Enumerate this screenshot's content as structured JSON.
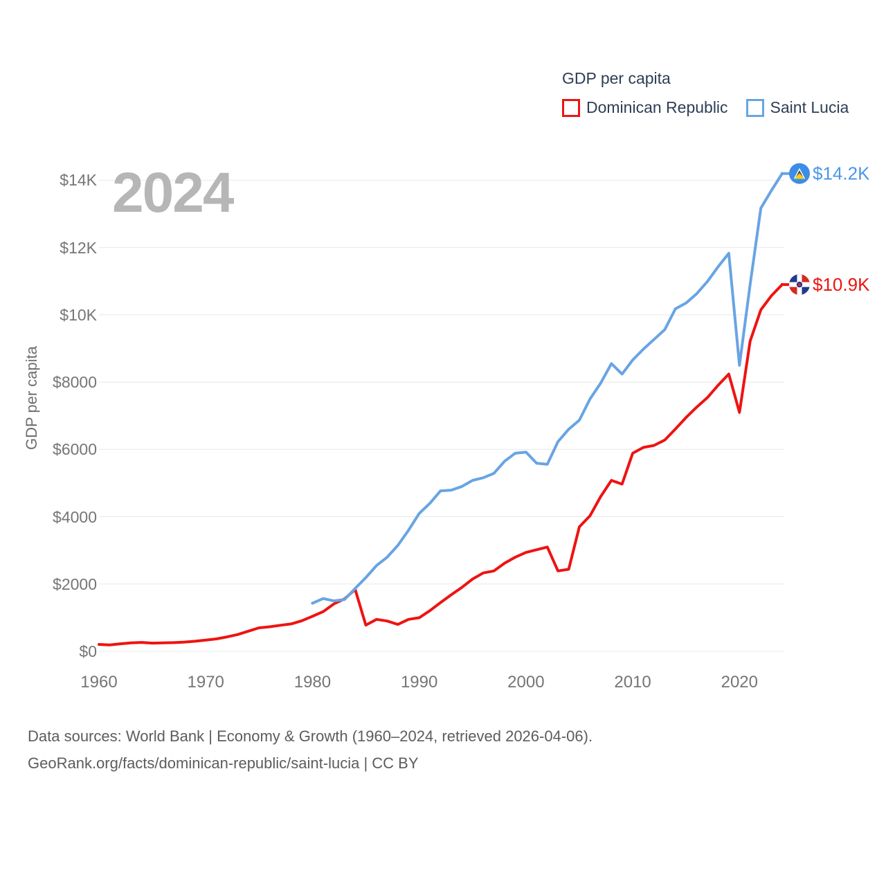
{
  "legend": {
    "title": "GDP per capita",
    "series": [
      {
        "label": "Dominican Republic",
        "color": "#ee1311"
      },
      {
        "label": "Saint Lucia",
        "color": "#68a4e4"
      }
    ]
  },
  "watermark": "2024",
  "chart_data": {
    "type": "line",
    "title": "GDP per capita",
    "xlabel": "",
    "ylabel": "GDP per capita",
    "xlim": [
      1960,
      2024
    ],
    "ylim": [
      0,
      14000
    ],
    "grid": "horizontal",
    "legend_position": "top-right",
    "x_tick_values": [
      1960,
      1970,
      1980,
      1990,
      2000,
      2010,
      2020
    ],
    "x_tick_labels": [
      "1960",
      "1970",
      "1980",
      "1990",
      "2000",
      "2010",
      "2020"
    ],
    "y_tick_values": [
      0,
      2000,
      4000,
      6000,
      8000,
      10000,
      12000,
      14000
    ],
    "y_tick_labels": [
      "$0",
      "$2000",
      "$4000",
      "$6000",
      "$8000",
      "$10K",
      "$12K",
      "$14K"
    ],
    "series": [
      {
        "id": "dominican-republic",
        "name": "Dominican Republic",
        "color": "#ee1311",
        "label_color": "#ee1311",
        "end_label": "$10.9K",
        "end_marker": "dominican-republic-flag",
        "x_start": 1960,
        "x_end": 2024,
        "values": [
          205,
          190,
          225,
          250,
          265,
          245,
          250,
          260,
          275,
          300,
          335,
          370,
          430,
          500,
          600,
          700,
          730,
          775,
          815,
          910,
          1040,
          1180,
          1410,
          1560,
          1840,
          780,
          950,
          900,
          800,
          950,
          1000,
          1210,
          1450,
          1680,
          1900,
          2150,
          2330,
          2390,
          2620,
          2800,
          2940,
          3020,
          3100,
          2390,
          2440,
          3700,
          4030,
          4600,
          5080,
          4970,
          5890,
          6060,
          6120,
          6280,
          6610,
          6950,
          7260,
          7540,
          7910,
          8240,
          7100,
          9220,
          10150,
          10570,
          10900
        ]
      },
      {
        "id": "saint-lucia",
        "name": "Saint Lucia",
        "color": "#68a4e4",
        "label_color": "#4b97e8",
        "end_label": "$14.2K",
        "end_marker": "saint-lucia-flag",
        "x_start": 1980,
        "x_end": 2024,
        "values": [
          1430,
          1570,
          1500,
          1540,
          1870,
          2190,
          2550,
          2800,
          3150,
          3600,
          4100,
          4400,
          4770,
          4790,
          4900,
          5080,
          5160,
          5290,
          5650,
          5890,
          5920,
          5590,
          5560,
          6230,
          6600,
          6870,
          7500,
          7970,
          8550,
          8240,
          8660,
          8980,
          9270,
          9560,
          10180,
          10350,
          10630,
          10990,
          11430,
          11830,
          8500,
          10900,
          13170,
          13700,
          14200
        ]
      }
    ]
  },
  "footer": {
    "line1": "Data sources: World Bank | Economy & Growth (1960–2024, retrieved 2026-04-06).",
    "line2": "GeoRank.org/facts/dominican-republic/saint-lucia | CC BY"
  },
  "colors": {
    "grid": "#e8e8e8",
    "watermark": "#b6b6b6",
    "tick_text": "#757575",
    "legend_text": "#2d3e54",
    "footer_text": "#5c5c5c",
    "saint_lucia_flag_blue": "#3d8de6",
    "saint_lucia_flag_yellow": "#f6ce0a",
    "dominican_flag_navy": "#1f3a8f",
    "dominican_flag_red": "#d52b20"
  }
}
